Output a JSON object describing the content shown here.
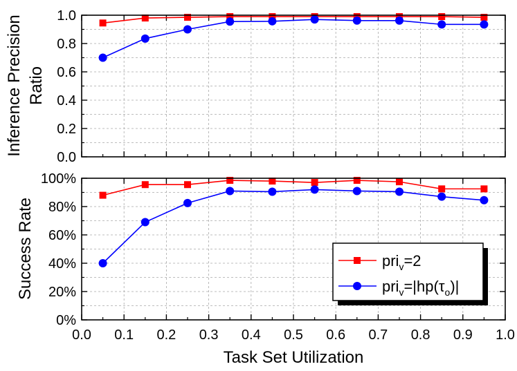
{
  "chart_data": [
    {
      "type": "line",
      "xlabel": "",
      "ylabel": "Inference Precision Ratio",
      "xlim": [
        0.0,
        1.0
      ],
      "ylim": [
        0.0,
        1.0
      ],
      "yticks": [
        0.0,
        0.2,
        0.4,
        0.6,
        0.8,
        1.0
      ],
      "ytick_labels": [
        "0.0",
        "0.2",
        "0.4",
        "0.6",
        "0.8",
        "1.0"
      ],
      "grid": true,
      "x": [
        0.05,
        0.15,
        0.25,
        0.35,
        0.45,
        0.55,
        0.65,
        0.75,
        0.85,
        0.95
      ],
      "series": [
        {
          "legend_id": "a",
          "color": "#ff0000",
          "marker": "square",
          "values": [
            0.945,
            0.98,
            0.985,
            0.99,
            0.99,
            0.99,
            0.99,
            0.99,
            0.99,
            0.985
          ]
        },
        {
          "legend_id": "b",
          "color": "#0000ff",
          "marker": "circle",
          "values": [
            0.7,
            0.835,
            0.9,
            0.955,
            0.957,
            0.97,
            0.962,
            0.962,
            0.935,
            0.935
          ]
        }
      ]
    },
    {
      "type": "line",
      "xlabel": "Task Set Utilization",
      "ylabel": "Success Rate",
      "xlim": [
        0.0,
        1.0
      ],
      "ylim": [
        0,
        100
      ],
      "yticks": [
        0,
        20,
        40,
        60,
        80,
        100
      ],
      "ytick_labels": [
        "0%",
        "20%",
        "40%",
        "60%",
        "80%",
        "100%"
      ],
      "xticks": [
        0.0,
        0.1,
        0.2,
        0.3,
        0.4,
        0.5,
        0.6,
        0.7,
        0.8,
        0.9,
        1.0
      ],
      "xtick_labels": [
        "0.0",
        "0.1",
        "0.2",
        "0.3",
        "0.4",
        "0.5",
        "0.6",
        "0.7",
        "0.8",
        "0.9",
        "1.0"
      ],
      "grid": true,
      "legend_position": "bottom-right",
      "x": [
        0.05,
        0.15,
        0.25,
        0.35,
        0.45,
        0.55,
        0.65,
        0.75,
        0.85,
        0.95
      ],
      "series": [
        {
          "legend_id": "a",
          "color": "#ff0000",
          "marker": "square",
          "values": [
            88,
            95.5,
            95.5,
            98.5,
            98,
            97,
            98.5,
            97.5,
            92.5,
            92.5
          ]
        },
        {
          "legend_id": "b",
          "color": "#0000ff",
          "marker": "circle",
          "values": [
            40,
            69,
            82.5,
            91,
            90.5,
            92,
            91,
            90.5,
            87,
            84.5
          ]
        }
      ]
    }
  ],
  "legend": {
    "a": {
      "text_main": "pri",
      "text_sub": "v",
      "text_rest": "=2"
    },
    "b": {
      "text_main": "pri",
      "text_sub": "v",
      "text_mid": "=|hp(τ",
      "text_sub2": "o",
      "text_end": ")|"
    }
  }
}
